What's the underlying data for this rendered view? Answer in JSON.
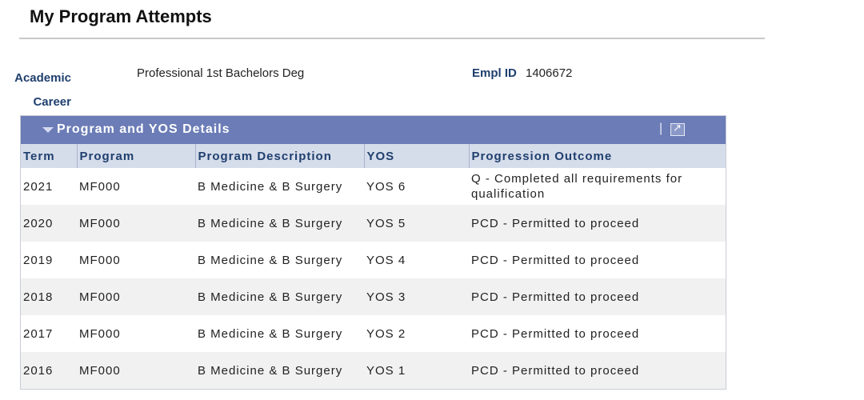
{
  "page": {
    "title": "My Program Attempts"
  },
  "info": {
    "career_label": "Academic Career",
    "career_value": "Professional 1st Bachelors Deg",
    "empl_label": "Empl ID",
    "empl_value": "1406672"
  },
  "grid": {
    "title": "Program and YOS Details",
    "icons": {
      "collapse": "caret-down-icon",
      "popout": "popout-icon"
    },
    "columns": [
      "Term",
      "Program",
      "Program Description",
      "YOS",
      "Progression Outcome"
    ],
    "rows": [
      {
        "term": "2021",
        "program": "MF000",
        "description": "B Medicine & B Surgery",
        "yos": "YOS 6",
        "outcome": "Q - Completed all requirements for qualification"
      },
      {
        "term": "2020",
        "program": "MF000",
        "description": "B Medicine & B Surgery",
        "yos": "YOS 5",
        "outcome": "PCD - Permitted to proceed"
      },
      {
        "term": "2019",
        "program": "MF000",
        "description": "B Medicine & B Surgery",
        "yos": "YOS 4",
        "outcome": "PCD - Permitted to proceed"
      },
      {
        "term": "2018",
        "program": "MF000",
        "description": "B Medicine & B Surgery",
        "yos": "YOS 3",
        "outcome": "PCD - Permitted to proceed"
      },
      {
        "term": "2017",
        "program": "MF000",
        "description": "B Medicine & B Surgery",
        "yos": "YOS 2",
        "outcome": "PCD - Permitted to proceed"
      },
      {
        "term": "2016",
        "program": "MF000",
        "description": "B Medicine & B Surgery",
        "yos": "YOS 1",
        "outcome": "PCD - Permitted to proceed"
      }
    ]
  }
}
